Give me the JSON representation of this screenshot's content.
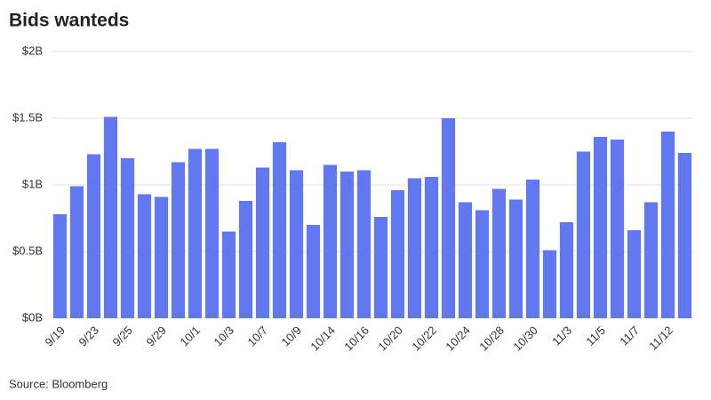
{
  "chart_data": {
    "type": "bar",
    "title": "Bids wanteds",
    "source": "Source: Bloomberg",
    "categories": [
      "9/19",
      null,
      "9/23",
      null,
      "9/25",
      null,
      "9/29",
      null,
      "10/1",
      null,
      "10/3",
      null,
      "10/7",
      null,
      "10/9",
      null,
      "10/14",
      null,
      "10/16",
      null,
      "10/20",
      null,
      "10/22",
      null,
      "10/24",
      null,
      "10/28",
      null,
      "10/30",
      null,
      "11/3",
      null,
      "11/5",
      null,
      "11/7",
      null,
      "11/12",
      null
    ],
    "values": [
      0.78,
      0.99,
      1.23,
      1.51,
      1.2,
      0.93,
      0.91,
      1.17,
      1.27,
      1.27,
      0.65,
      0.88,
      1.13,
      1.32,
      1.11,
      0.7,
      1.15,
      1.1,
      1.11,
      0.76,
      0.96,
      1.05,
      1.06,
      1.5,
      0.87,
      0.81,
      0.97,
      0.89,
      1.04,
      0.51,
      0.72,
      1.25,
      1.36,
      1.34,
      0.66,
      0.87,
      1.4,
      1.24
    ],
    "color": "#6278f0",
    "ylim": [
      0,
      2
    ],
    "yticks": [
      {
        "value": 0,
        "label": "$0B"
      },
      {
        "value": 0.5,
        "label": "$0.5B"
      },
      {
        "value": 1,
        "label": "$1B"
      },
      {
        "value": 1.5,
        "label": "$1.5B"
      },
      {
        "value": 2,
        "label": "$2B"
      }
    ],
    "grid": true
  }
}
